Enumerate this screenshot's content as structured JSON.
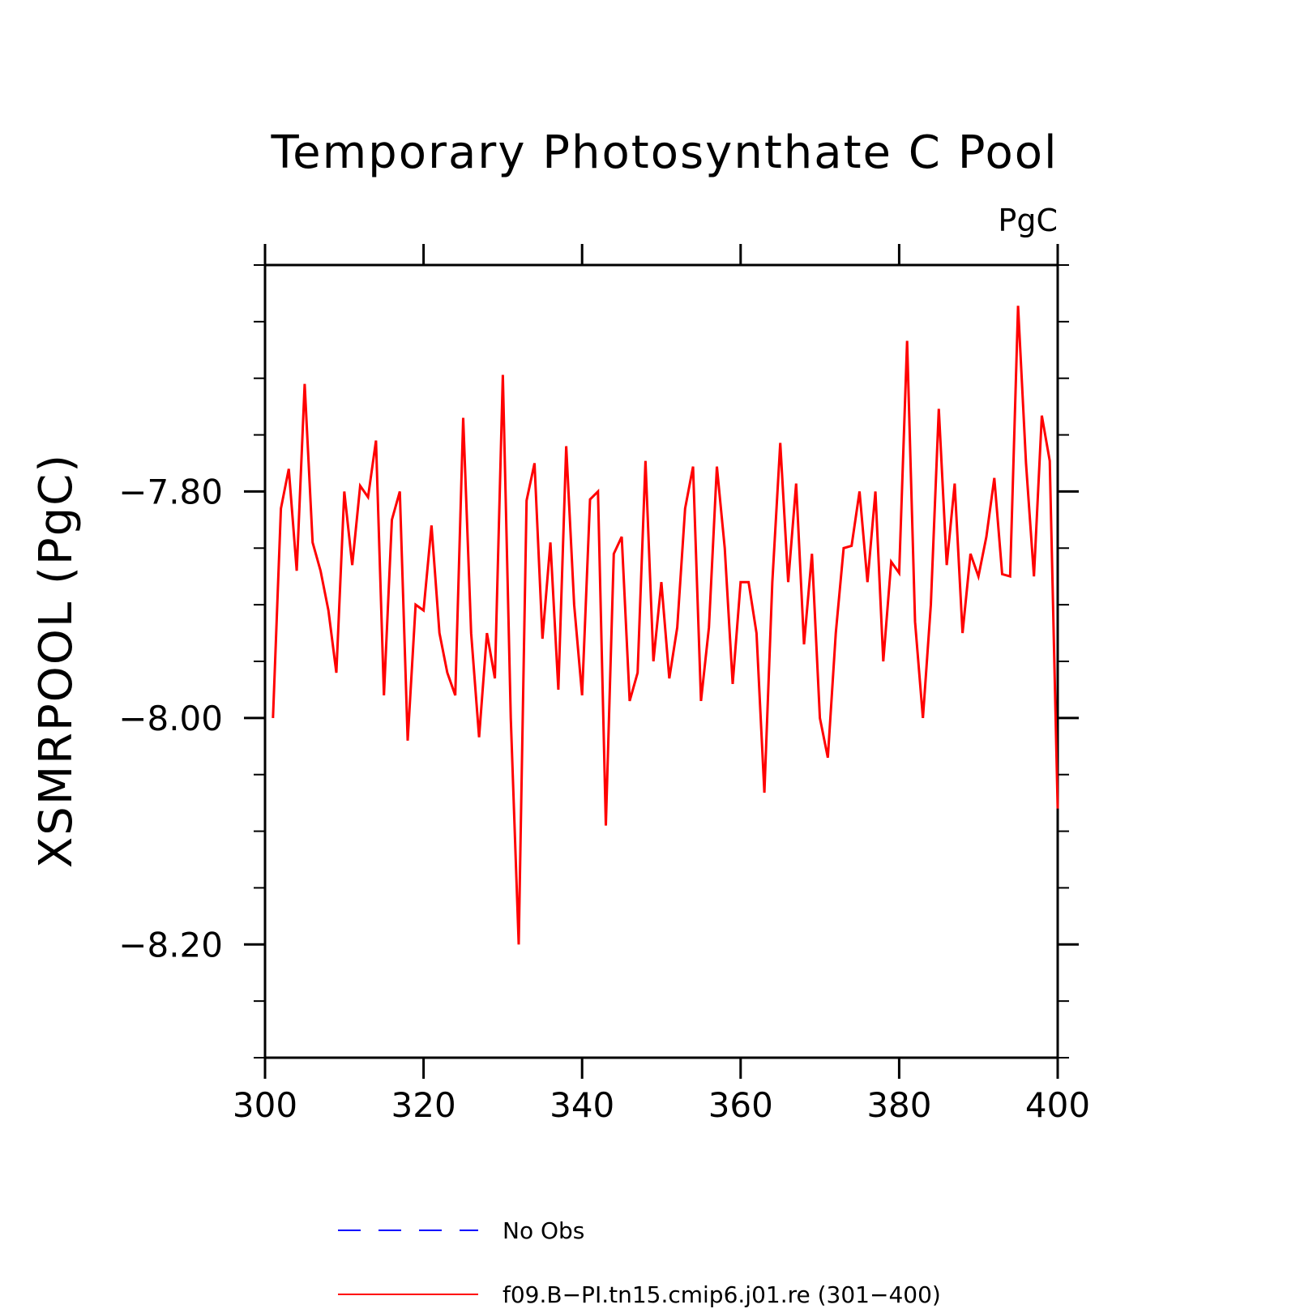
{
  "chart_data": {
    "type": "line",
    "title": "Temporary Photosynthate C Pool",
    "units_label": "PgC",
    "ylabel": "XSMRPOOL  (PgC)",
    "xlabel": "",
    "xlim": [
      300,
      400
    ],
    "ylim": [
      -8.3,
      -7.6
    ],
    "x_ticks": [
      300,
      320,
      340,
      360,
      380,
      400
    ],
    "x_tick_labels": [
      "300",
      "320",
      "340",
      "360",
      "380",
      "400"
    ],
    "y_ticks": [
      -8.2,
      -8.0,
      -7.8
    ],
    "y_tick_labels": [
      "−8.20",
      "−8.00",
      "−7.80"
    ],
    "grid": false,
    "legend": {
      "placement": "bottom",
      "entries": [
        {
          "name": "No Obs",
          "color": "#0000ff",
          "dash": true
        },
        {
          "name": "f09.B−PI.tn15.cmip6.j01.re (301−400)",
          "color": "#ff0000",
          "dash": false
        }
      ]
    },
    "series": [
      {
        "name": "f09.B−PI.tn15.cmip6.j01.re (301−400)",
        "color": "#ff0000",
        "x": [
          301,
          302,
          303,
          304,
          305,
          306,
          307,
          308,
          309,
          310,
          311,
          312,
          313,
          314,
          315,
          316,
          317,
          318,
          319,
          320,
          321,
          322,
          323,
          324,
          325,
          326,
          327,
          328,
          329,
          330,
          331,
          332,
          333,
          334,
          335,
          336,
          337,
          338,
          339,
          340,
          341,
          342,
          343,
          344,
          345,
          346,
          347,
          348,
          349,
          350,
          351,
          352,
          353,
          354,
          355,
          356,
          357,
          358,
          359,
          360,
          361,
          362,
          363,
          364,
          365,
          366,
          367,
          368,
          369,
          370,
          371,
          372,
          373,
          374,
          375,
          376,
          377,
          378,
          379,
          380,
          381,
          382,
          383,
          384,
          385,
          386,
          387,
          388,
          389,
          390,
          391,
          392,
          393,
          394,
          395,
          396,
          397,
          398,
          399,
          400
        ],
        "values": [
          -8.0,
          -7.815,
          -7.78,
          -7.87,
          -7.705,
          -7.845,
          -7.87,
          -7.905,
          -7.96,
          -7.8,
          -7.865,
          -7.795,
          -7.805,
          -7.755,
          -7.98,
          -7.825,
          -7.8,
          -8.02,
          -7.9,
          -7.905,
          -7.83,
          -7.925,
          -7.96,
          -7.98,
          -7.735,
          -7.925,
          -8.017,
          -7.925,
          -7.965,
          -7.697,
          -8.0,
          -8.2,
          -7.808,
          -7.775,
          -7.93,
          -7.845,
          -7.975,
          -7.76,
          -7.9,
          -7.98,
          -7.807,
          -7.8,
          -8.095,
          -7.855,
          -7.84,
          -7.985,
          -7.96,
          -7.773,
          -7.95,
          -7.88,
          -7.965,
          -7.92,
          -7.815,
          -7.778,
          -7.985,
          -7.92,
          -7.778,
          -7.85,
          -7.97,
          -7.88,
          -7.88,
          -7.925,
          -8.066,
          -7.88,
          -7.757,
          -7.88,
          -7.793,
          -7.935,
          -7.855,
          -8.0,
          -8.035,
          -7.925,
          -7.85,
          -7.848,
          -7.8,
          -7.88,
          -7.8,
          -7.95,
          -7.862,
          -7.872,
          -7.667,
          -7.915,
          -8.0,
          -7.9,
          -7.727,
          -7.865,
          -7.793,
          -7.925,
          -7.855,
          -7.875,
          -7.84,
          -7.788,
          -7.873,
          -7.875,
          -7.636,
          -7.775,
          -7.875,
          -7.733,
          -7.773,
          -8.08
        ]
      }
    ]
  }
}
